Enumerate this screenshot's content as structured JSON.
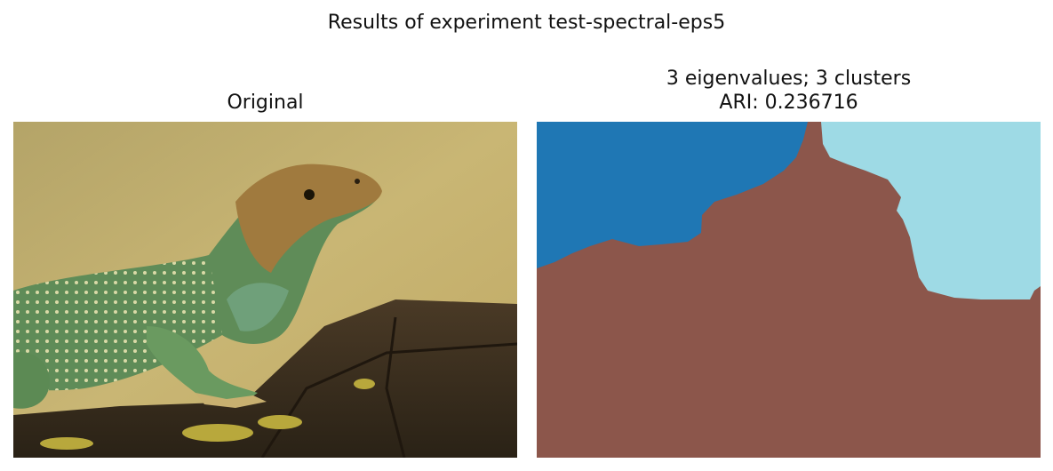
{
  "figure": {
    "suptitle": "Results of experiment test-spectral-eps5"
  },
  "left_panel": {
    "title": "Original",
    "image": "photo of a collared lizard resting on a lichen-covered log"
  },
  "right_panel": {
    "title_line1": "3 eigenvalues; 3 clusters",
    "title_line2": "ARI: 0.236716",
    "segmentation": {
      "clusters": 3,
      "colors": {
        "cluster_blue": "#1f77b4",
        "cluster_brown": "#8c564b",
        "cluster_lightblue": "#9edae5"
      }
    }
  }
}
